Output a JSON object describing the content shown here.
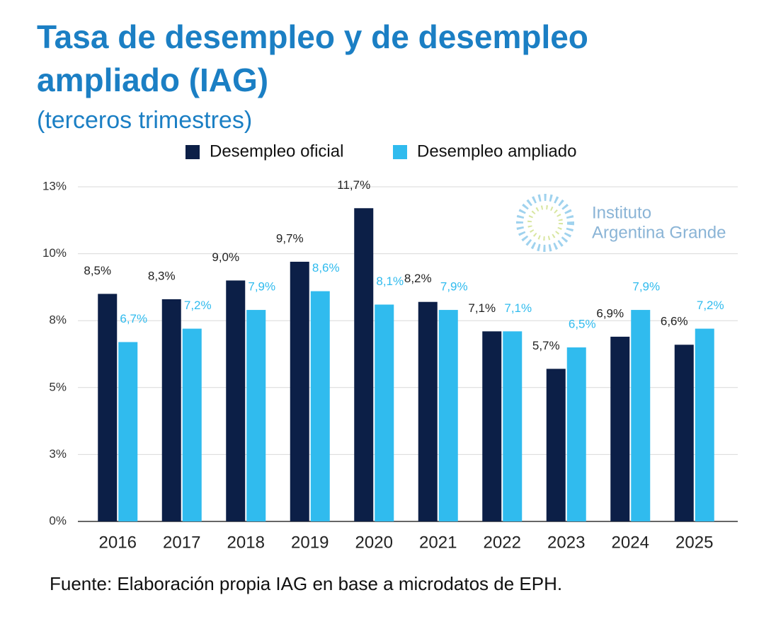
{
  "chart_data": {
    "type": "bar",
    "title_line1": "Tasa de desempleo y de desempleo",
    "title_line2": "ampliado (IAG)",
    "subtitle": "(terceros trimestres)",
    "source": "Fuente: Elaboración propia IAG en base a microdatos de EPH.",
    "logo": [
      "Instituto",
      "Argentina Grande"
    ],
    "categories": [
      "2016",
      "2017",
      "2018",
      "2019",
      "2020",
      "2021",
      "2022",
      "2023",
      "2024",
      "2025"
    ],
    "series": [
      {
        "name": "Desempleo oficial",
        "color": "#0c1f47",
        "values": [
          8.5,
          8.3,
          9.0,
          9.7,
          11.7,
          8.2,
          7.1,
          5.7,
          6.9,
          6.6
        ],
        "value_labels": [
          "8,5%",
          "8,3%",
          "9,0%",
          "9,7%",
          "11,7%",
          "8,2%",
          "7,1%",
          "5,7%",
          "6,9%",
          "6,6%"
        ]
      },
      {
        "name": "Desempleo ampliado",
        "color": "#30bbee",
        "values": [
          6.7,
          7.2,
          7.9,
          8.6,
          8.1,
          7.9,
          7.1,
          6.5,
          7.9,
          7.2
        ],
        "value_labels": [
          "6,7%",
          "7,2%",
          "7,9%",
          "8,6%",
          "8,1%",
          "7,9%",
          "7,1%",
          "6,5%",
          "7,9%",
          "7,2%"
        ]
      }
    ],
    "ylim": [
      0,
      12.5
    ],
    "yticks": [
      {
        "value": 0,
        "label": "0%"
      },
      {
        "value": 2.5,
        "label": "3%"
      },
      {
        "value": 5,
        "label": "5%"
      },
      {
        "value": 7.5,
        "label": "8%"
      },
      {
        "value": 10,
        "label": "10%"
      },
      {
        "value": 12.5,
        "label": "13%"
      }
    ],
    "grid": true,
    "legend": "top"
  }
}
